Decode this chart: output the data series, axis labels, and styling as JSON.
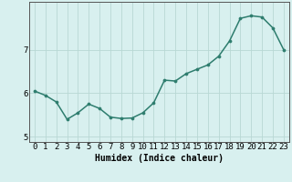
{
  "x": [
    0,
    1,
    2,
    3,
    4,
    5,
    6,
    7,
    8,
    9,
    10,
    11,
    12,
    13,
    14,
    15,
    16,
    17,
    18,
    19,
    20,
    21,
    22,
    23
  ],
  "y": [
    6.05,
    5.95,
    5.8,
    5.4,
    5.55,
    5.75,
    5.65,
    5.45,
    5.42,
    5.43,
    5.55,
    5.78,
    6.3,
    6.28,
    6.45,
    6.55,
    6.65,
    6.85,
    7.2,
    7.72,
    7.78,
    7.75,
    7.5,
    7.0
  ],
  "line_color": "#2e7d6e",
  "marker": "o",
  "marker_size": 2.2,
  "bg_color": "#d8f0ef",
  "grid_color": "#b8d8d4",
  "axis_color": "#555555",
  "xlabel": "Humidex (Indice chaleur)",
  "xlim": [
    -0.5,
    23.5
  ],
  "ylim": [
    4.88,
    8.1
  ],
  "yticks": [
    5,
    6,
    7
  ],
  "xticks": [
    0,
    1,
    2,
    3,
    4,
    5,
    6,
    7,
    8,
    9,
    10,
    11,
    12,
    13,
    14,
    15,
    16,
    17,
    18,
    19,
    20,
    21,
    22,
    23
  ],
  "xlabel_fontsize": 7.0,
  "tick_fontsize": 6.5,
  "line_width": 1.1
}
